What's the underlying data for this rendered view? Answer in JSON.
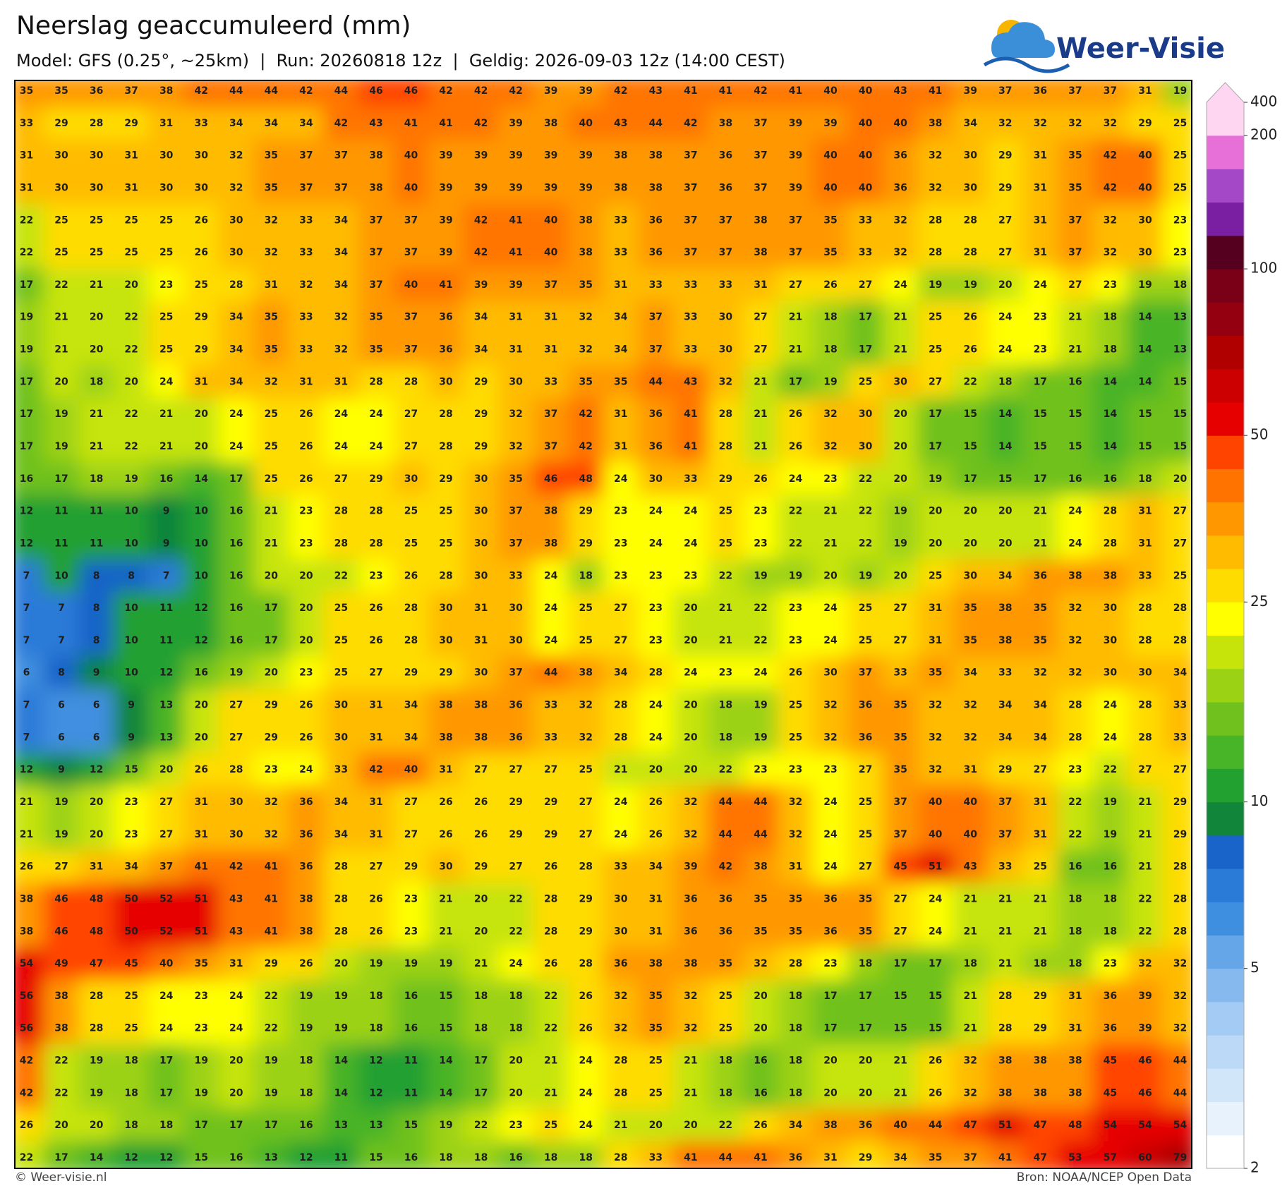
{
  "header": {
    "title": "Neerslag geaccumuleerd (mm)",
    "subtitle": "Model: GFS (0.25°, ~25km)  |  Run: 20260818 12z  |  Geldig: 2026-09-03 12z (14:00 CEST)",
    "logo": "Weer-Visie"
  },
  "footer": {
    "left": "© Weer-visie.nl",
    "right": "Bron: NOAA/NCEP Open Data"
  },
  "colorbar": {
    "ticks": [
      2,
      5,
      10,
      25,
      50,
      100,
      200,
      400
    ],
    "levels": [
      2,
      2.5,
      3,
      3.5,
      4,
      4.5,
      5,
      6,
      7,
      8,
      9,
      10,
      12.5,
      15,
      17.5,
      20,
      22.5,
      25,
      30,
      35,
      40,
      45,
      50,
      60,
      70,
      80,
      90,
      100,
      125,
      150,
      175,
      200,
      400
    ],
    "colors": [
      "#ffffff",
      "#e8f2fc",
      "#d2e6fa",
      "#bcdaf7",
      "#a4cbf3",
      "#86b9ee",
      "#64a6e8",
      "#3f8fe0",
      "#2a7ad8",
      "#1864c8",
      "#11853a",
      "#22a030",
      "#48b428",
      "#70c11e",
      "#9cd214",
      "#c6e40a",
      "#ffff00",
      "#ffdc00",
      "#ffbb00",
      "#ff9800",
      "#ff7400",
      "#ff4400",
      "#e60000",
      "#cc0000",
      "#b00000",
      "#950010",
      "#7a0018",
      "#55001e",
      "#7a1fa2",
      "#a448c8",
      "#e670d8",
      "#ffd6f2"
    ]
  },
  "grid": [
    [
      35,
      35,
      36,
      37,
      38,
      42,
      44,
      44,
      42,
      44,
      46,
      46,
      42,
      42,
      42,
      39,
      39,
      42,
      43,
      41,
      41,
      42,
      41,
      40,
      40,
      43,
      41,
      39,
      37,
      36,
      37,
      37,
      31,
      19
    ],
    [
      33,
      29,
      28,
      29,
      31,
      33,
      34,
      34,
      34,
      42,
      43,
      41,
      41,
      42,
      39,
      38,
      40,
      43,
      44,
      42,
      38,
      37,
      39,
      39,
      40,
      40,
      38,
      34,
      32,
      32,
      32,
      32,
      29,
      25
    ],
    [
      31,
      30,
      30,
      31,
      30,
      30,
      32,
      35,
      37,
      37,
      38,
      40,
      39,
      39,
      39,
      39,
      39,
      38,
      38,
      37,
      36,
      37,
      39,
      40,
      40,
      36,
      32,
      30,
      29,
      31,
      35,
      42,
      40,
      25
    ],
    [
      31,
      30,
      30,
      31,
      30,
      30,
      32,
      35,
      37,
      37,
      38,
      40,
      39,
      39,
      39,
      39,
      39,
      38,
      38,
      37,
      36,
      37,
      39,
      40,
      40,
      36,
      32,
      30,
      29,
      31,
      35,
      42,
      40,
      25
    ],
    [
      22,
      25,
      25,
      25,
      25,
      26,
      30,
      32,
      33,
      34,
      37,
      37,
      39,
      42,
      41,
      40,
      38,
      33,
      36,
      37,
      37,
      38,
      37,
      35,
      33,
      32,
      28,
      28,
      27,
      31,
      37,
      32,
      30,
      23
    ],
    [
      22,
      25,
      25,
      25,
      25,
      26,
      30,
      32,
      33,
      34,
      37,
      37,
      39,
      42,
      41,
      40,
      38,
      33,
      36,
      37,
      37,
      38,
      37,
      35,
      33,
      32,
      28,
      28,
      27,
      31,
      37,
      32,
      30,
      23
    ],
    [
      17,
      22,
      21,
      20,
      23,
      25,
      28,
      31,
      32,
      34,
      37,
      40,
      41,
      39,
      39,
      37,
      35,
      31,
      33,
      33,
      33,
      31,
      27,
      26,
      27,
      24,
      19,
      19,
      20,
      24,
      27,
      23,
      19,
      18
    ],
    [
      19,
      21,
      20,
      22,
      25,
      29,
      34,
      35,
      33,
      32,
      35,
      37,
      36,
      34,
      31,
      31,
      32,
      34,
      37,
      33,
      30,
      27,
      21,
      18,
      17,
      21,
      25,
      26,
      24,
      23,
      21,
      18,
      14,
      13
    ],
    [
      19,
      21,
      20,
      22,
      25,
      29,
      34,
      35,
      33,
      32,
      35,
      37,
      36,
      34,
      31,
      31,
      32,
      34,
      37,
      33,
      30,
      27,
      21,
      18,
      17,
      21,
      25,
      26,
      24,
      23,
      21,
      18,
      14,
      13
    ],
    [
      17,
      20,
      18,
      20,
      24,
      31,
      34,
      32,
      31,
      31,
      28,
      28,
      30,
      29,
      30,
      33,
      35,
      35,
      44,
      43,
      32,
      21,
      17,
      19,
      25,
      30,
      27,
      22,
      18,
      17,
      16,
      14,
      14,
      15
    ],
    [
      17,
      19,
      21,
      22,
      21,
      20,
      24,
      25,
      26,
      24,
      24,
      27,
      28,
      29,
      32,
      37,
      42,
      31,
      36,
      41,
      28,
      21,
      26,
      32,
      30,
      20,
      17,
      15,
      14,
      15,
      15,
      14,
      15,
      15
    ],
    [
      17,
      19,
      21,
      22,
      21,
      20,
      24,
      25,
      26,
      24,
      24,
      27,
      28,
      29,
      32,
      37,
      42,
      31,
      36,
      41,
      28,
      21,
      26,
      32,
      30,
      20,
      17,
      15,
      14,
      15,
      15,
      14,
      15,
      15
    ],
    [
      16,
      17,
      18,
      19,
      16,
      14,
      17,
      25,
      26,
      27,
      29,
      30,
      29,
      30,
      35,
      46,
      48,
      24,
      30,
      33,
      29,
      26,
      24,
      23,
      22,
      20,
      19,
      17,
      15,
      17,
      16,
      16,
      18,
      20
    ],
    [
      12,
      11,
      11,
      10,
      9,
      10,
      16,
      21,
      23,
      28,
      28,
      25,
      25,
      30,
      37,
      38,
      29,
      23,
      24,
      24,
      25,
      23,
      22,
      21,
      22,
      19,
      20,
      20,
      20,
      21,
      24,
      28,
      31,
      27
    ],
    [
      12,
      11,
      11,
      10,
      9,
      10,
      16,
      21,
      23,
      28,
      28,
      25,
      25,
      30,
      37,
      38,
      29,
      23,
      24,
      24,
      25,
      23,
      22,
      21,
      22,
      19,
      20,
      20,
      20,
      21,
      24,
      28,
      31,
      27
    ],
    [
      7,
      10,
      8,
      8,
      7,
      10,
      16,
      20,
      20,
      22,
      23,
      26,
      28,
      30,
      33,
      24,
      18,
      23,
      23,
      23,
      22,
      19,
      19,
      20,
      19,
      20,
      25,
      30,
      34,
      36,
      38,
      38,
      33,
      25
    ],
    [
      7,
      7,
      8,
      10,
      11,
      12,
      16,
      17,
      20,
      25,
      26,
      28,
      30,
      31,
      30,
      24,
      25,
      27,
      23,
      20,
      21,
      22,
      23,
      24,
      25,
      27,
      31,
      35,
      38,
      35,
      32,
      30,
      28,
      28
    ],
    [
      7,
      7,
      8,
      10,
      11,
      12,
      16,
      17,
      20,
      25,
      26,
      28,
      30,
      31,
      30,
      24,
      25,
      27,
      23,
      20,
      21,
      22,
      23,
      24,
      25,
      27,
      31,
      35,
      38,
      35,
      32,
      30,
      28,
      28
    ],
    [
      6,
      8,
      9,
      10,
      12,
      16,
      19,
      20,
      23,
      25,
      27,
      29,
      29,
      30,
      37,
      44,
      38,
      34,
      28,
      24,
      23,
      24,
      26,
      30,
      37,
      33,
      35,
      34,
      33,
      32,
      32,
      30,
      30,
      34
    ],
    [
      7,
      6,
      6,
      9,
      13,
      20,
      27,
      29,
      26,
      30,
      31,
      34,
      38,
      38,
      36,
      33,
      32,
      28,
      24,
      20,
      18,
      19,
      25,
      32,
      36,
      35,
      32,
      32,
      34,
      34,
      28,
      24,
      28,
      33
    ],
    [
      7,
      6,
      6,
      9,
      13,
      20,
      27,
      29,
      26,
      30,
      31,
      34,
      38,
      38,
      36,
      33,
      32,
      28,
      24,
      20,
      18,
      19,
      25,
      32,
      36,
      35,
      32,
      32,
      34,
      34,
      28,
      24,
      28,
      33
    ],
    [
      12,
      9,
      12,
      15,
      20,
      26,
      28,
      23,
      24,
      33,
      42,
      40,
      31,
      27,
      27,
      27,
      25,
      21,
      20,
      20,
      22,
      23,
      23,
      23,
      27,
      35,
      32,
      31,
      29,
      27,
      23,
      22,
      27,
      27
    ],
    [
      21,
      19,
      20,
      23,
      27,
      31,
      30,
      32,
      36,
      34,
      31,
      27,
      26,
      26,
      29,
      29,
      27,
      24,
      26,
      32,
      44,
      44,
      32,
      24,
      25,
      37,
      40,
      40,
      37,
      31,
      22,
      19,
      21,
      29
    ],
    [
      21,
      19,
      20,
      23,
      27,
      31,
      30,
      32,
      36,
      34,
      31,
      27,
      26,
      26,
      29,
      29,
      27,
      24,
      26,
      32,
      44,
      44,
      32,
      24,
      25,
      37,
      40,
      40,
      37,
      31,
      22,
      19,
      21,
      29
    ],
    [
      26,
      27,
      31,
      34,
      37,
      41,
      42,
      41,
      36,
      28,
      27,
      29,
      30,
      29,
      27,
      26,
      28,
      33,
      34,
      39,
      42,
      38,
      31,
      24,
      27,
      45,
      51,
      43,
      33,
      25,
      16,
      16,
      21,
      28
    ],
    [
      38,
      46,
      48,
      50,
      52,
      51,
      43,
      41,
      38,
      28,
      26,
      23,
      21,
      20,
      22,
      28,
      29,
      30,
      31,
      36,
      36,
      35,
      35,
      36,
      35,
      27,
      24,
      21,
      21,
      21,
      18,
      18,
      22,
      28
    ],
    [
      38,
      46,
      48,
      50,
      52,
      51,
      43,
      41,
      38,
      28,
      26,
      23,
      21,
      20,
      22,
      28,
      29,
      30,
      31,
      36,
      36,
      35,
      35,
      36,
      35,
      27,
      24,
      21,
      21,
      21,
      18,
      18,
      22,
      28
    ],
    [
      54,
      49,
      47,
      45,
      40,
      35,
      31,
      29,
      26,
      20,
      19,
      19,
      19,
      21,
      24,
      26,
      28,
      36,
      38,
      38,
      35,
      32,
      28,
      23,
      18,
      17,
      17,
      18,
      21,
      18,
      18,
      23,
      32,
      32
    ],
    [
      56,
      38,
      28,
      25,
      24,
      23,
      24,
      22,
      19,
      19,
      18,
      16,
      15,
      18,
      18,
      22,
      26,
      32,
      35,
      32,
      25,
      20,
      18,
      17,
      17,
      15,
      15,
      21,
      28,
      29,
      31,
      36,
      39,
      32
    ],
    [
      56,
      38,
      28,
      25,
      24,
      23,
      24,
      22,
      19,
      19,
      18,
      16,
      15,
      18,
      18,
      22,
      26,
      32,
      35,
      32,
      25,
      20,
      18,
      17,
      17,
      15,
      15,
      21,
      28,
      29,
      31,
      36,
      39,
      32
    ],
    [
      42,
      22,
      19,
      18,
      17,
      19,
      20,
      19,
      18,
      14,
      12,
      11,
      14,
      17,
      20,
      21,
      24,
      28,
      25,
      21,
      18,
      16,
      18,
      20,
      20,
      21,
      26,
      32,
      38,
      38,
      38,
      45,
      46,
      44
    ],
    [
      42,
      22,
      19,
      18,
      17,
      19,
      20,
      19,
      18,
      14,
      12,
      11,
      14,
      17,
      20,
      21,
      24,
      28,
      25,
      21,
      18,
      16,
      18,
      20,
      20,
      21,
      26,
      32,
      38,
      38,
      38,
      45,
      46,
      44
    ],
    [
      26,
      20,
      20,
      18,
      18,
      17,
      17,
      17,
      16,
      13,
      13,
      15,
      19,
      22,
      23,
      25,
      24,
      21,
      20,
      20,
      22,
      26,
      34,
      38,
      36,
      40,
      44,
      47,
      51,
      47,
      48,
      54,
      54,
      54
    ],
    [
      22,
      17,
      14,
      12,
      12,
      15,
      16,
      13,
      12,
      11,
      15,
      16,
      18,
      18,
      16,
      18,
      18,
      28,
      33,
      41,
      44,
      41,
      36,
      31,
      29,
      34,
      35,
      37,
      41,
      47,
      53,
      57,
      60,
      79
    ]
  ]
}
